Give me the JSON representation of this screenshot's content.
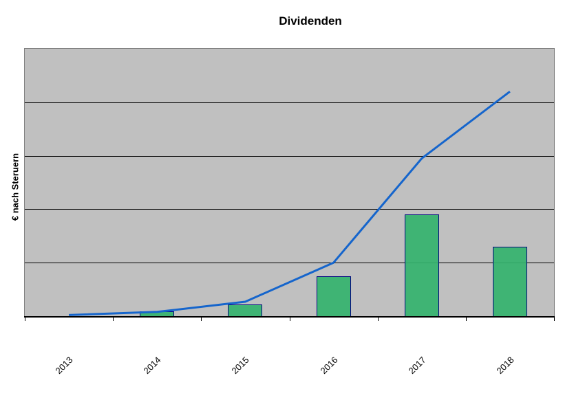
{
  "title": "Dividenden",
  "chart_data": {
    "type": "bar",
    "title": "Dividenden",
    "subtitle": "",
    "xlabel": "",
    "ylabel": "€ nach Steruern",
    "categories": [
      "2013",
      "2014",
      "2015",
      "2016",
      "2017",
      "2018"
    ],
    "series": [
      {
        "name": "dividends-bars",
        "type": "bar",
        "values": [
          0,
          0.09,
          0.22,
          0.75,
          1.9,
          1.3
        ]
      },
      {
        "name": "cumulative-line",
        "type": "line",
        "values": [
          0.02,
          0.08,
          0.27,
          1.0,
          2.95,
          4.2
        ]
      }
    ],
    "ylim": [
      0,
      5
    ],
    "y_tick_labels_visible": false,
    "y_units": "gridline divisions (axis has no numeric labels)",
    "grid": true,
    "legend_position": "none",
    "colors": {
      "bar_fill": "#42B476",
      "bar_border": "#000080",
      "line": "#1565CC",
      "plot_background": "#C0C0C0",
      "plot_border": "#808080",
      "gridline": "#000000",
      "axis": "#000000",
      "text": "#000000",
      "page_background": "#FFFFFF"
    }
  }
}
